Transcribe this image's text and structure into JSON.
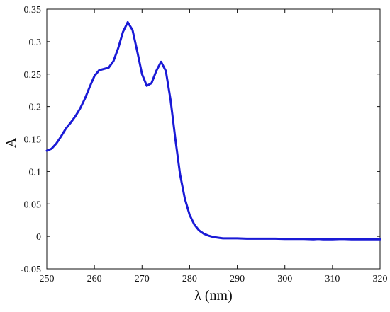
{
  "chart_data": {
    "type": "line",
    "title": "",
    "xlabel": "λ (nm)",
    "ylabel": "A",
    "xlim": [
      250,
      320
    ],
    "ylim": [
      -0.05,
      0.35
    ],
    "xticks": [
      250,
      260,
      270,
      280,
      290,
      300,
      310,
      320
    ],
    "yticks": [
      -0.05,
      0,
      0.05,
      0.1,
      0.15,
      0.2,
      0.25,
      0.3,
      0.35
    ],
    "ytick_labels": [
      "-0.05",
      "0",
      "0.05",
      "0.1",
      "0.15",
      "0.2",
      "0.25",
      "0.3",
      "0.35"
    ],
    "grid": false,
    "legend": "none",
    "line_color": "#1a1ad6",
    "series": [
      {
        "x": [
          250,
          251,
          252,
          253,
          254,
          255,
          256,
          257,
          258,
          259,
          260,
          261,
          262,
          263,
          264,
          265,
          266,
          267,
          268,
          269,
          270,
          271,
          272,
          273,
          274,
          275,
          276,
          277,
          278,
          279,
          280,
          281,
          282,
          283,
          284,
          285,
          286,
          287,
          288,
          290,
          292,
          294,
          296,
          298,
          300,
          302,
          304,
          306,
          307,
          308,
          310,
          312,
          314,
          316,
          318,
          320
        ],
        "y": [
          0.132,
          0.135,
          0.143,
          0.154,
          0.166,
          0.175,
          0.185,
          0.197,
          0.212,
          0.23,
          0.247,
          0.256,
          0.258,
          0.26,
          0.27,
          0.29,
          0.315,
          0.33,
          0.318,
          0.285,
          0.25,
          0.232,
          0.236,
          0.255,
          0.269,
          0.255,
          0.21,
          0.15,
          0.095,
          0.058,
          0.033,
          0.018,
          0.009,
          0.004,
          0.001,
          -0.001,
          -0.002,
          -0.003,
          -0.003,
          -0.003,
          -0.0035,
          -0.0035,
          -0.0035,
          -0.0035,
          -0.004,
          -0.004,
          -0.004,
          -0.0045,
          -0.004,
          -0.0045,
          -0.0045,
          -0.004,
          -0.0045,
          -0.0045,
          -0.0045,
          -0.0045
        ]
      }
    ]
  }
}
